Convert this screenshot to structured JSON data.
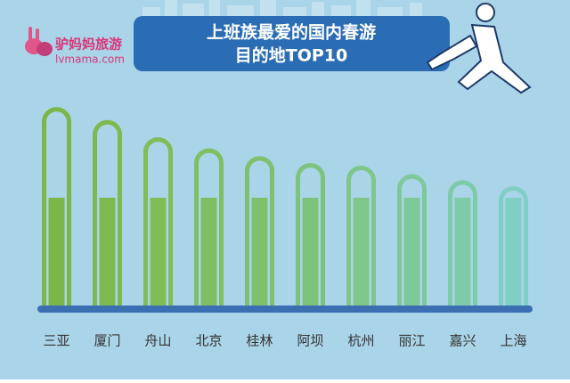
{
  "chart_data": {
    "type": "tube-bar",
    "title_line1": "上班族最爱的国内春游",
    "title_line2": "目的地TOP10",
    "logo_name": "驴妈妈旅游",
    "logo_url": "lvmama.com",
    "categories": [
      "三亚",
      "厦门",
      "舟山",
      "北京",
      "桂林",
      "阿坝",
      "杭州",
      "丽江",
      "嘉兴",
      "上海"
    ],
    "values": [
      232,
      217,
      197,
      184,
      175,
      167,
      164,
      154,
      147,
      140
    ],
    "colors": [
      "#7ab648",
      "#7db94f",
      "#80bc58",
      "#80be62",
      "#7fc06e",
      "#7ec37c",
      "#7ec689",
      "#7ec999",
      "#7ecbaa",
      "#7fcfc6"
    ],
    "ylim": [
      0,
      240
    ]
  }
}
